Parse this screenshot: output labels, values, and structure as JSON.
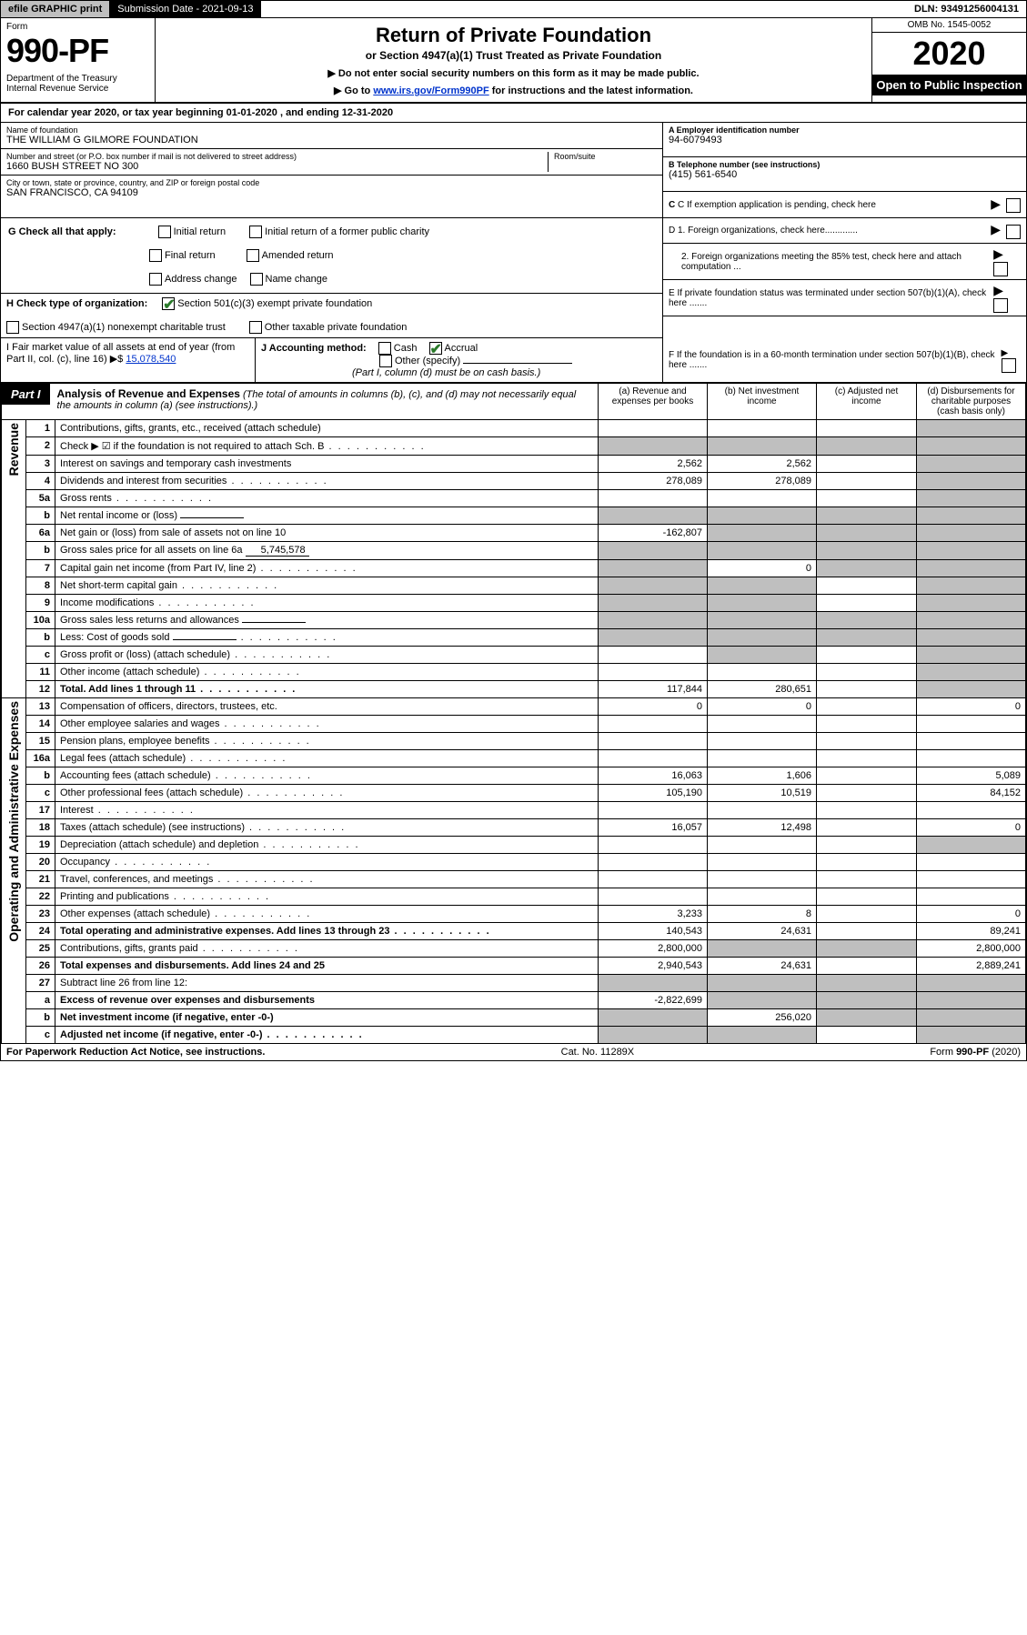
{
  "topbar": {
    "efile": "efile GRAPHIC print",
    "subdate_label": "Submission Date - 2021-09-13",
    "dln": "DLN: 93491256004131"
  },
  "header": {
    "form_label": "Form",
    "form_number": "990-PF",
    "dept": "Department of the Treasury\nInternal Revenue Service",
    "title": "Return of Private Foundation",
    "subtitle": "or Section 4947(a)(1) Trust Treated as Private Foundation",
    "note1": "▶ Do not enter social security numbers on this form as it may be made public.",
    "note2_pre": "▶ Go to ",
    "note2_link": "www.irs.gov/Form990PF",
    "note2_post": " for instructions and the latest information.",
    "omb": "OMB No. 1545-0052",
    "year": "2020",
    "open_pub": "Open to Public Inspection"
  },
  "calyear": "For calendar year 2020, or tax year beginning 01-01-2020                , and ending 12-31-2020",
  "name_block": {
    "label": "Name of foundation",
    "value": "THE WILLIAM G GILMORE FOUNDATION"
  },
  "addr_block": {
    "label": "Number and street (or P.O. box number if mail is not delivered to street address)",
    "value": "1660 BUSH STREET NO 300",
    "room_label": "Room/suite"
  },
  "city_block": {
    "label": "City or town, state or province, country, and ZIP or foreign postal code",
    "value": "SAN FRANCISCO, CA  94109"
  },
  "a_block": {
    "label": "A Employer identification number",
    "value": "94-6079493"
  },
  "b_block": {
    "label": "B Telephone number (see instructions)",
    "value": "(415) 561-6540"
  },
  "c_block": {
    "label": "C If exemption application is pending, check here"
  },
  "d1": "D 1. Foreign organizations, check here.............",
  "d2": "2. Foreign organizations meeting the 85% test, check here and attach computation ...",
  "e_block": "E  If private foundation status was terminated under section 507(b)(1)(A), check here .......",
  "f_block": "F  If the foundation is in a 60-month termination under section 507(b)(1)(B), check here .......",
  "g_row": {
    "label": "G Check all that apply:",
    "opts": [
      "Initial return",
      "Initial return of a former public charity",
      "Final return",
      "Amended return",
      "Address change",
      "Name change"
    ]
  },
  "h_row": {
    "label": "H Check type of organization:",
    "o1": "Section 501(c)(3) exempt private foundation",
    "o2": "Section 4947(a)(1) nonexempt charitable trust",
    "o3": "Other taxable private foundation"
  },
  "i_row": {
    "label": "I Fair market value of all assets at end of year (from Part II, col. (c), line 16)",
    "arrow": "▶$",
    "value": "15,078,540"
  },
  "j_row": {
    "label": "J Accounting method:",
    "cash": "Cash",
    "accrual": "Accrual",
    "other": "Other (specify)",
    "note": "(Part I, column (d) must be on cash basis.)"
  },
  "part1": {
    "badge": "Part I",
    "title": "Analysis of Revenue and Expenses",
    "note": "(The total of amounts in columns (b), (c), and (d) may not necessarily equal the amounts in column (a) (see instructions).)",
    "cols": {
      "a": "(a) Revenue and expenses per books",
      "b": "(b) Net investment income",
      "c": "(c) Adjusted net income",
      "d": "(d) Disbursements for charitable purposes (cash basis only)"
    }
  },
  "sections": {
    "rev": "Revenue",
    "oae": "Operating and Administrative Expenses"
  },
  "rows": [
    {
      "n": "1",
      "d": "Contributions, gifts, grants, etc., received (attach schedule)",
      "a": "",
      "b": "",
      "c": "",
      "dd": "",
      "dshade": true
    },
    {
      "n": "2",
      "d": "Check ▶ ☑ if the foundation is not required to attach Sch. B",
      "dots": true,
      "a": "",
      "b": "",
      "c": "",
      "dd": "",
      "allshade": true
    },
    {
      "n": "3",
      "d": "Interest on savings and temporary cash investments",
      "a": "2,562",
      "b": "2,562",
      "c": "",
      "dd": "",
      "dshade": true
    },
    {
      "n": "4",
      "d": "Dividends and interest from securities",
      "dots": true,
      "a": "278,089",
      "b": "278,089",
      "c": "",
      "dd": "",
      "dshade": true
    },
    {
      "n": "5a",
      "d": "Gross rents",
      "dots": true,
      "a": "",
      "b": "",
      "c": "",
      "dd": "",
      "dshade": true
    },
    {
      "n": "b",
      "d": "Net rental income or (loss)",
      "fill": "",
      "a": "",
      "b": "",
      "c": "",
      "dd": "",
      "allshade": true
    },
    {
      "n": "6a",
      "d": "Net gain or (loss) from sale of assets not on line 10",
      "a": "-162,807",
      "b": "",
      "c": "",
      "dd": "",
      "bcdshade": true
    },
    {
      "n": "b",
      "d": "Gross sales price for all assets on line 6a",
      "fill": "5,745,578",
      "a": "",
      "b": "",
      "c": "",
      "dd": "",
      "allshade": true
    },
    {
      "n": "7",
      "d": "Capital gain net income (from Part IV, line 2)",
      "dots": true,
      "a": "",
      "b": "0",
      "c": "",
      "dd": "",
      "ashade": true,
      "cdshade": true
    },
    {
      "n": "8",
      "d": "Net short-term capital gain",
      "dots": true,
      "a": "",
      "b": "",
      "c": "",
      "dd": "",
      "abshade": true,
      "dshade": true
    },
    {
      "n": "9",
      "d": "Income modifications",
      "dots": true,
      "a": "",
      "b": "",
      "c": "",
      "dd": "",
      "abshade": true,
      "dshade": true
    },
    {
      "n": "10a",
      "d": "Gross sales less returns and allowances",
      "fill": "",
      "a": "",
      "b": "",
      "c": "",
      "dd": "",
      "allshade": true
    },
    {
      "n": "b",
      "d": "Less: Cost of goods sold",
      "dots": true,
      "fill": "",
      "a": "",
      "b": "",
      "c": "",
      "dd": "",
      "allshade": true
    },
    {
      "n": "c",
      "d": "Gross profit or (loss) (attach schedule)",
      "dots": true,
      "a": "",
      "b": "",
      "c": "",
      "dd": "",
      "bshade": true,
      "dshade": true
    },
    {
      "n": "11",
      "d": "Other income (attach schedule)",
      "dots": true,
      "a": "",
      "b": "",
      "c": "",
      "dd": "",
      "dshade": true
    },
    {
      "n": "12",
      "d": "Total. Add lines 1 through 11",
      "dots": true,
      "bold": true,
      "a": "117,844",
      "b": "280,651",
      "c": "",
      "dd": "",
      "dshade": true
    },
    {
      "n": "13",
      "d": "Compensation of officers, directors, trustees, etc.",
      "a": "0",
      "b": "0",
      "c": "",
      "dd": "0"
    },
    {
      "n": "14",
      "d": "Other employee salaries and wages",
      "dots": true,
      "a": "",
      "b": "",
      "c": "",
      "dd": ""
    },
    {
      "n": "15",
      "d": "Pension plans, employee benefits",
      "dots": true,
      "a": "",
      "b": "",
      "c": "",
      "dd": ""
    },
    {
      "n": "16a",
      "d": "Legal fees (attach schedule)",
      "dots": true,
      "a": "",
      "b": "",
      "c": "",
      "dd": ""
    },
    {
      "n": "b",
      "d": "Accounting fees (attach schedule)",
      "dots": true,
      "a": "16,063",
      "b": "1,606",
      "c": "",
      "dd": "5,089"
    },
    {
      "n": "c",
      "d": "Other professional fees (attach schedule)",
      "dots": true,
      "a": "105,190",
      "b": "10,519",
      "c": "",
      "dd": "84,152"
    },
    {
      "n": "17",
      "d": "Interest",
      "dots": true,
      "a": "",
      "b": "",
      "c": "",
      "dd": ""
    },
    {
      "n": "18",
      "d": "Taxes (attach schedule) (see instructions)",
      "dots": true,
      "a": "16,057",
      "b": "12,498",
      "c": "",
      "dd": "0"
    },
    {
      "n": "19",
      "d": "Depreciation (attach schedule) and depletion",
      "dots": true,
      "a": "",
      "b": "",
      "c": "",
      "dd": "",
      "dshade": true
    },
    {
      "n": "20",
      "d": "Occupancy",
      "dots": true,
      "a": "",
      "b": "",
      "c": "",
      "dd": ""
    },
    {
      "n": "21",
      "d": "Travel, conferences, and meetings",
      "dots": true,
      "a": "",
      "b": "",
      "c": "",
      "dd": ""
    },
    {
      "n": "22",
      "d": "Printing and publications",
      "dots": true,
      "a": "",
      "b": "",
      "c": "",
      "dd": ""
    },
    {
      "n": "23",
      "d": "Other expenses (attach schedule)",
      "dots": true,
      "a": "3,233",
      "b": "8",
      "c": "",
      "dd": "0"
    },
    {
      "n": "24",
      "d": "Total operating and administrative expenses. Add lines 13 through 23",
      "dots": true,
      "bold": true,
      "a": "140,543",
      "b": "24,631",
      "c": "",
      "dd": "89,241"
    },
    {
      "n": "25",
      "d": "Contributions, gifts, grants paid",
      "dots": true,
      "a": "2,800,000",
      "b": "",
      "c": "",
      "dd": "2,800,000",
      "bcshade": true
    },
    {
      "n": "26",
      "d": "Total expenses and disbursements. Add lines 24 and 25",
      "bold": true,
      "a": "2,940,543",
      "b": "24,631",
      "c": "",
      "dd": "2,889,241"
    },
    {
      "n": "27",
      "d": "Subtract line 26 from line 12:",
      "a": "",
      "b": "",
      "c": "",
      "dd": "",
      "allshade": true
    },
    {
      "n": "a",
      "d": "Excess of revenue over expenses and disbursements",
      "bold": true,
      "a": "-2,822,699",
      "b": "",
      "c": "",
      "dd": "",
      "bcdshade": true
    },
    {
      "n": "b",
      "d": "Net investment income (if negative, enter -0-)",
      "bold": true,
      "a": "",
      "b": "256,020",
      "c": "",
      "dd": "",
      "ashade": true,
      "cdshade": true
    },
    {
      "n": "c",
      "d": "Adjusted net income (if negative, enter -0-)",
      "dots": true,
      "bold": true,
      "a": "",
      "b": "",
      "c": "",
      "dd": "",
      "abshade": true,
      "dshade": true
    }
  ],
  "footer": {
    "left": "For Paperwork Reduction Act Notice, see instructions.",
    "mid": "Cat. No. 11289X",
    "right": "Form 990-PF (2020)"
  },
  "colors": {
    "shade": "#bfbfbf",
    "link": "#0033cc",
    "check": "#2a7a2a"
  }
}
